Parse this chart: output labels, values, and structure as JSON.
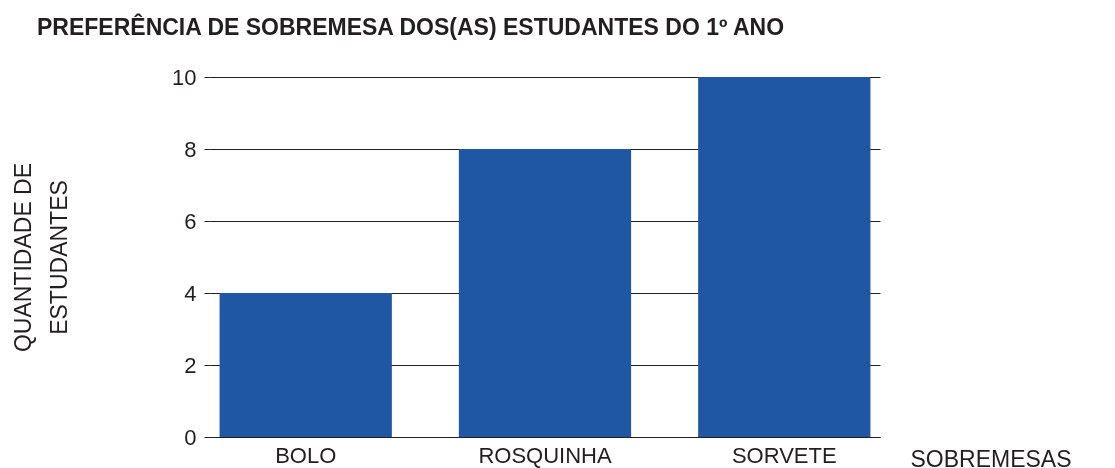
{
  "chart_data": {
    "type": "bar",
    "title": "PREFERÊNCIA DE SOBREMESA DOS(AS) ESTUDANTES DO 1º ANO",
    "xlabel": "SOBREMESAS",
    "ylabel": "QUANTIDADE DE ESTUDANTES",
    "categories": [
      "BOLO",
      "ROSQUINHA",
      "SORVETE"
    ],
    "values": [
      4,
      8,
      10
    ],
    "color": "#1f57a5",
    "ylim": [
      0,
      10
    ],
    "yticks": [
      0,
      2,
      4,
      6,
      8,
      10
    ],
    "grid": "y"
  }
}
